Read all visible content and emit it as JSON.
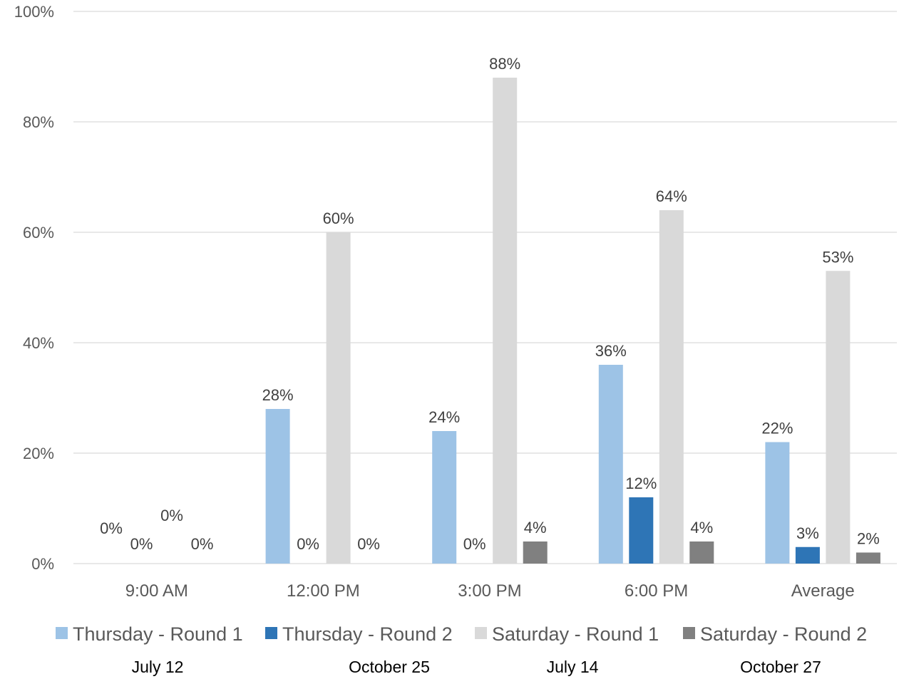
{
  "chart_data": {
    "type": "bar",
    "categories": [
      "9:00 AM",
      "12:00 PM",
      "3:00 PM",
      "6:00 PM",
      "Average"
    ],
    "series": [
      {
        "name": "Thursday - Round 1",
        "color": "#9DC3E6",
        "values": [
          0,
          28,
          24,
          36,
          22
        ],
        "labels": [
          "0%",
          "28%",
          "24%",
          "36%",
          "22%"
        ]
      },
      {
        "name": "Thursday - Round 2",
        "color": "#2E75B6",
        "values": [
          0,
          0,
          0,
          12,
          3
        ],
        "labels": [
          "0%",
          "0%",
          "0%",
          "12%",
          "3%"
        ]
      },
      {
        "name": "Saturday - Round 1",
        "color": "#D9D9D9",
        "values": [
          0,
          60,
          88,
          64,
          53
        ],
        "labels": [
          "0%",
          "60%",
          "88%",
          "64%",
          "53%"
        ]
      },
      {
        "name": "Saturday - Round 2",
        "color": "#808080",
        "values": [
          0,
          0,
          4,
          4,
          2
        ],
        "labels": [
          "0%",
          "0%",
          "4%",
          "4%",
          "2%"
        ]
      }
    ],
    "ylim": [
      0,
      100
    ],
    "yticks": [
      "0%",
      "20%",
      "40%",
      "60%",
      "80%",
      "100%"
    ],
    "grid": true,
    "legend_position": "bottom",
    "dates": [
      "July 12",
      "October 25",
      "July 14",
      "October 27"
    ]
  }
}
